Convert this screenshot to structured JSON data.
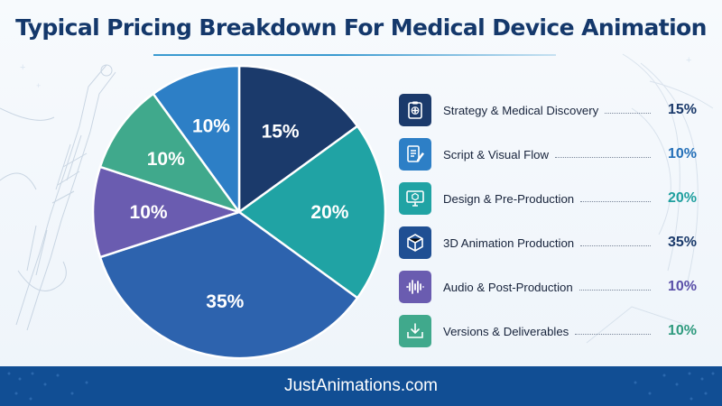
{
  "title": "Typical Pricing Breakdown For Medical Device Animation",
  "footer": {
    "website": "JustAnimations.com"
  },
  "chart_data": {
    "type": "pie",
    "title": "Typical Pricing Breakdown For Medical Device Animation",
    "unit": "%",
    "slices": [
      {
        "label": "Strategy & Medical Discovery",
        "value": 15,
        "value_label": "15%",
        "color": "#1b3a6b",
        "value_color": "#1b3a6b",
        "icon": "clipboard-medical-icon"
      },
      {
        "label": "Design & Pre-Production",
        "value": 20,
        "value_label": "20%",
        "color": "#20a3a4",
        "value_color": "#1f9f9f",
        "icon": "monitor-cube-icon"
      },
      {
        "label": "3D Animation Production",
        "value": 35,
        "value_label": "35%",
        "color": "#2d63ae",
        "value_color": "#1b3a6b",
        "icon": "3d-cube-icon"
      },
      {
        "label": "Audio & Post-Production",
        "value": 10,
        "value_label": "10%",
        "color": "#6a5cb0",
        "value_color": "#5a4fa8",
        "icon": "audio-waveform-icon"
      },
      {
        "label": "Versions & Deliverables",
        "value": 10,
        "value_label": "10%",
        "color": "#40a98c",
        "value_color": "#2f9a7e",
        "icon": "download-tray-icon"
      },
      {
        "label": "Script & Visual Flow",
        "value": 10,
        "value_label": "10%",
        "color": "#2d7fc6",
        "value_color": "#2570b8",
        "icon": "script-pen-icon"
      }
    ],
    "legend_order": [
      "Strategy & Medical Discovery",
      "Script & Visual Flow",
      "Design & Pre-Production",
      "3D Animation Production",
      "Audio & Post-Production",
      "Versions & Deliverables"
    ],
    "legend_placement": "right"
  }
}
